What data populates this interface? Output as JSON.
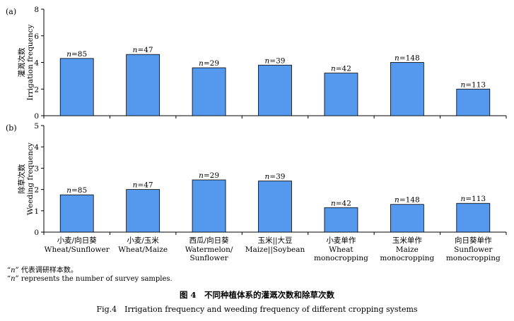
{
  "chart_data": [
    {
      "type": "bar",
      "panel": "(a)",
      "ylabel_cn": "灌溉次数",
      "ylabel_en": "Irrigation frequency",
      "ylim": [
        0,
        8
      ],
      "yticks": [
        0,
        2,
        4,
        6,
        8
      ],
      "categories": [
        "Wheat/Sunflower",
        "Wheat/Maize",
        "Watermelon/Sunflower",
        "Maize||Soybean",
        "Wheat monocropping",
        "Maize monocropping",
        "Sunflower monocropping"
      ],
      "values": [
        4.3,
        4.6,
        3.6,
        3.8,
        3.2,
        4.0,
        2.0
      ],
      "labels": [
        "=85",
        "=47",
        "=29",
        "=39",
        "=42",
        "=148",
        "=113"
      ],
      "label_prefix": "n",
      "bar_color": "#5599ee"
    },
    {
      "type": "bar",
      "panel": "(b)",
      "ylabel_cn": "除草次数",
      "ylabel_en": "Weeding frequency",
      "ylim": [
        0,
        5
      ],
      "yticks": [
        0,
        1,
        2,
        3,
        4,
        5
      ],
      "categories": [
        "Wheat/Sunflower",
        "Wheat/Maize",
        "Watermelon/Sunflower",
        "Maize||Soybean",
        "Wheat monocropping",
        "Maize monocropping",
        "Sunflower monocropping"
      ],
      "values": [
        1.75,
        2.0,
        2.45,
        2.4,
        1.15,
        1.3,
        1.35
      ],
      "labels": [
        "=85",
        "=47",
        "=29",
        "=39",
        "=42",
        "=148",
        "=113"
      ],
      "label_prefix": "n",
      "bar_color": "#5599ee",
      "xticklabels": [
        {
          "cn": "小麦/向日葵",
          "en1": "Wheat/Sunflower",
          "en2": ""
        },
        {
          "cn": "小麦/玉米",
          "en1": "Wheat/Maize",
          "en2": ""
        },
        {
          "cn": "西瓜/向日葵",
          "en1": "Watermelon/",
          "en2": "Sunflower"
        },
        {
          "cn": "玉米||大豆",
          "en1": "Maize||Soybean",
          "en2": ""
        },
        {
          "cn": "小麦单作",
          "en1": "Wheat",
          "en2": "monocropping"
        },
        {
          "cn": "玉米单作",
          "en1": "Maize",
          "en2": "monocropping"
        },
        {
          "cn": "向日葵单作",
          "en1": "Sunflower",
          "en2": "monocropping"
        }
      ]
    }
  ],
  "notes": {
    "note_cn_quote": "“n”",
    "note_cn_text": " 代表调研样本数。",
    "note_en_quote": "“n”",
    "note_en_text": " represents the number of survey samples."
  },
  "caption": {
    "cn": "图 4　不同种植体系的灌溉次数和除草次数",
    "en": "Fig.4　Irrigation frequency and weeding frequency of different cropping systems"
  }
}
